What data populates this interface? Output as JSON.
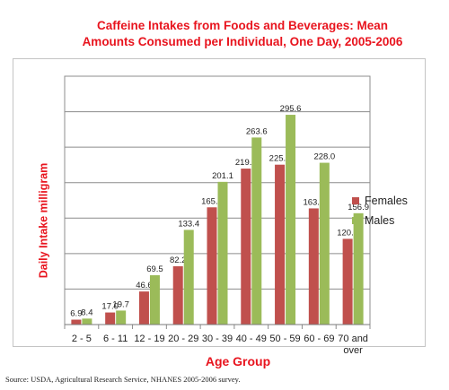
{
  "title": "Caffeine Intakes from Foods and Beverages: Mean Amounts Consumed per Individual, One Day, 2005-2006",
  "source": "Source: USDA, Agricultural Research Service, NHANES 2005-2006 survey.",
  "colors": {
    "title": "#e8141e",
    "females": "#c0504d",
    "males": "#9bbb59"
  },
  "chart_data": {
    "type": "bar",
    "title": "Caffeine Intakes from Foods and Beverages: Mean Amounts Consumed per Individual, One Day, 2005-2006",
    "ylabel": "Daily Intake milligram",
    "xlabel": "Age Group",
    "categories": [
      "2 - 5",
      "6 - 11",
      "12 - 19",
      "20 - 29",
      "30 - 39",
      "40 - 49",
      "50 - 59",
      "60 - 69",
      "70 and over"
    ],
    "series": [
      {
        "name": "Females",
        "values": [
          6.9,
          17.0,
          46.6,
          82.2,
          165.2,
          219.8,
          225.3,
          163.7,
          120.8
        ],
        "labels": [
          "6.9",
          "17.0",
          "46.6",
          "82.2",
          "165.2",
          "219.8",
          "225.3",
          "163.7",
          "120.8"
        ]
      },
      {
        "name": "Males",
        "values": [
          8.4,
          19.7,
          69.5,
          133.4,
          201.1,
          263.6,
          295.6,
          228.0,
          156.9
        ],
        "labels": [
          "8.4",
          "19.7",
          "69.5",
          "133.4",
          "201.1",
          "263.6",
          "295.6",
          "228.0",
          "156.9"
        ]
      }
    ],
    "ylim": [
      0,
      350
    ],
    "grid": true,
    "legend": "right"
  }
}
